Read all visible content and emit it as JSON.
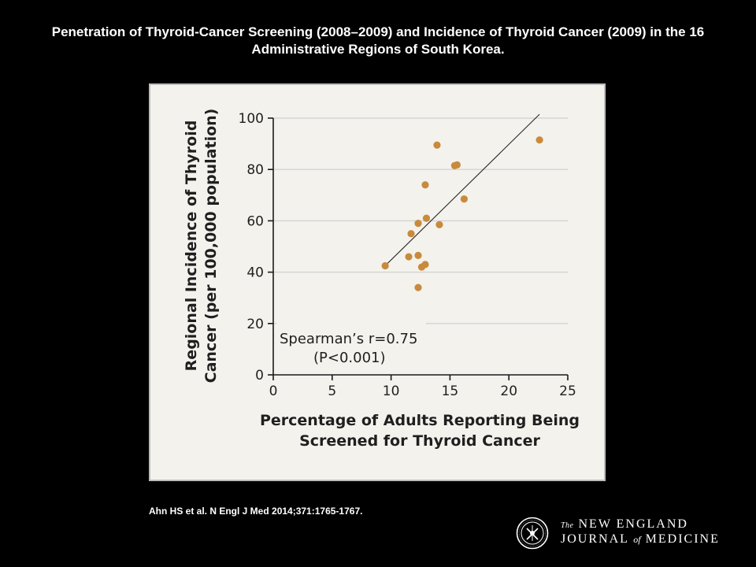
{
  "slide": {
    "title": "Penetration of Thyroid-Cancer Screening (2008–2009) and Incidence of Thyroid Cancer (2009) in the 16 Administrative Regions of South Korea.",
    "citation": "Ahn  HS et al. N Engl J Med 2014;371:1765-1767."
  },
  "logo": {
    "the": "The",
    "line1": "NEW ENGLAND",
    "line2_part1": "JOURNAL",
    "of": "of",
    "line2_part2": "MEDICINE"
  },
  "colors": {
    "background": "#000000",
    "panel": "#f3f2ed",
    "point": "#c98a3c",
    "line": "#2a2a2a",
    "grid": "#d4d4d4"
  },
  "chart_data": {
    "type": "scatter",
    "title": "",
    "xlabel": "Percentage of Adults Reporting Being Screened for Thyroid Cancer",
    "ylabel": "Regional Incidence of Thyroid Cancer (per 100,000 population)",
    "xlim": [
      0,
      25
    ],
    "ylim": [
      0,
      100
    ],
    "xticks": [
      0,
      5,
      10,
      15,
      20,
      25
    ],
    "yticks": [
      0,
      20,
      40,
      60,
      80,
      100
    ],
    "grid": "horizontal",
    "series": [
      {
        "points": [
          {
            "x": 9.5,
            "y": 42.5
          },
          {
            "x": 11.5,
            "y": 46
          },
          {
            "x": 11.7,
            "y": 55
          },
          {
            "x": 12.3,
            "y": 34
          },
          {
            "x": 12.3,
            "y": 46.5
          },
          {
            "x": 12.3,
            "y": 59
          },
          {
            "x": 12.6,
            "y": 42
          },
          {
            "x": 12.9,
            "y": 43
          },
          {
            "x": 12.9,
            "y": 74
          },
          {
            "x": 13.0,
            "y": 61
          },
          {
            "x": 13.9,
            "y": 89.5
          },
          {
            "x": 14.1,
            "y": 58.5
          },
          {
            "x": 15.4,
            "y": 81.5
          },
          {
            "x": 15.6,
            "y": 81.8
          },
          {
            "x": 16.2,
            "y": 68.5
          },
          {
            "x": 22.6,
            "y": 91.5
          }
        ]
      }
    ],
    "trendline": [
      [
        9.5,
        42.5
      ],
      [
        22.6,
        101.5
      ]
    ],
    "annotation_lines": [
      "Spearman’s r=0.75",
      "(P<0.001)"
    ]
  }
}
